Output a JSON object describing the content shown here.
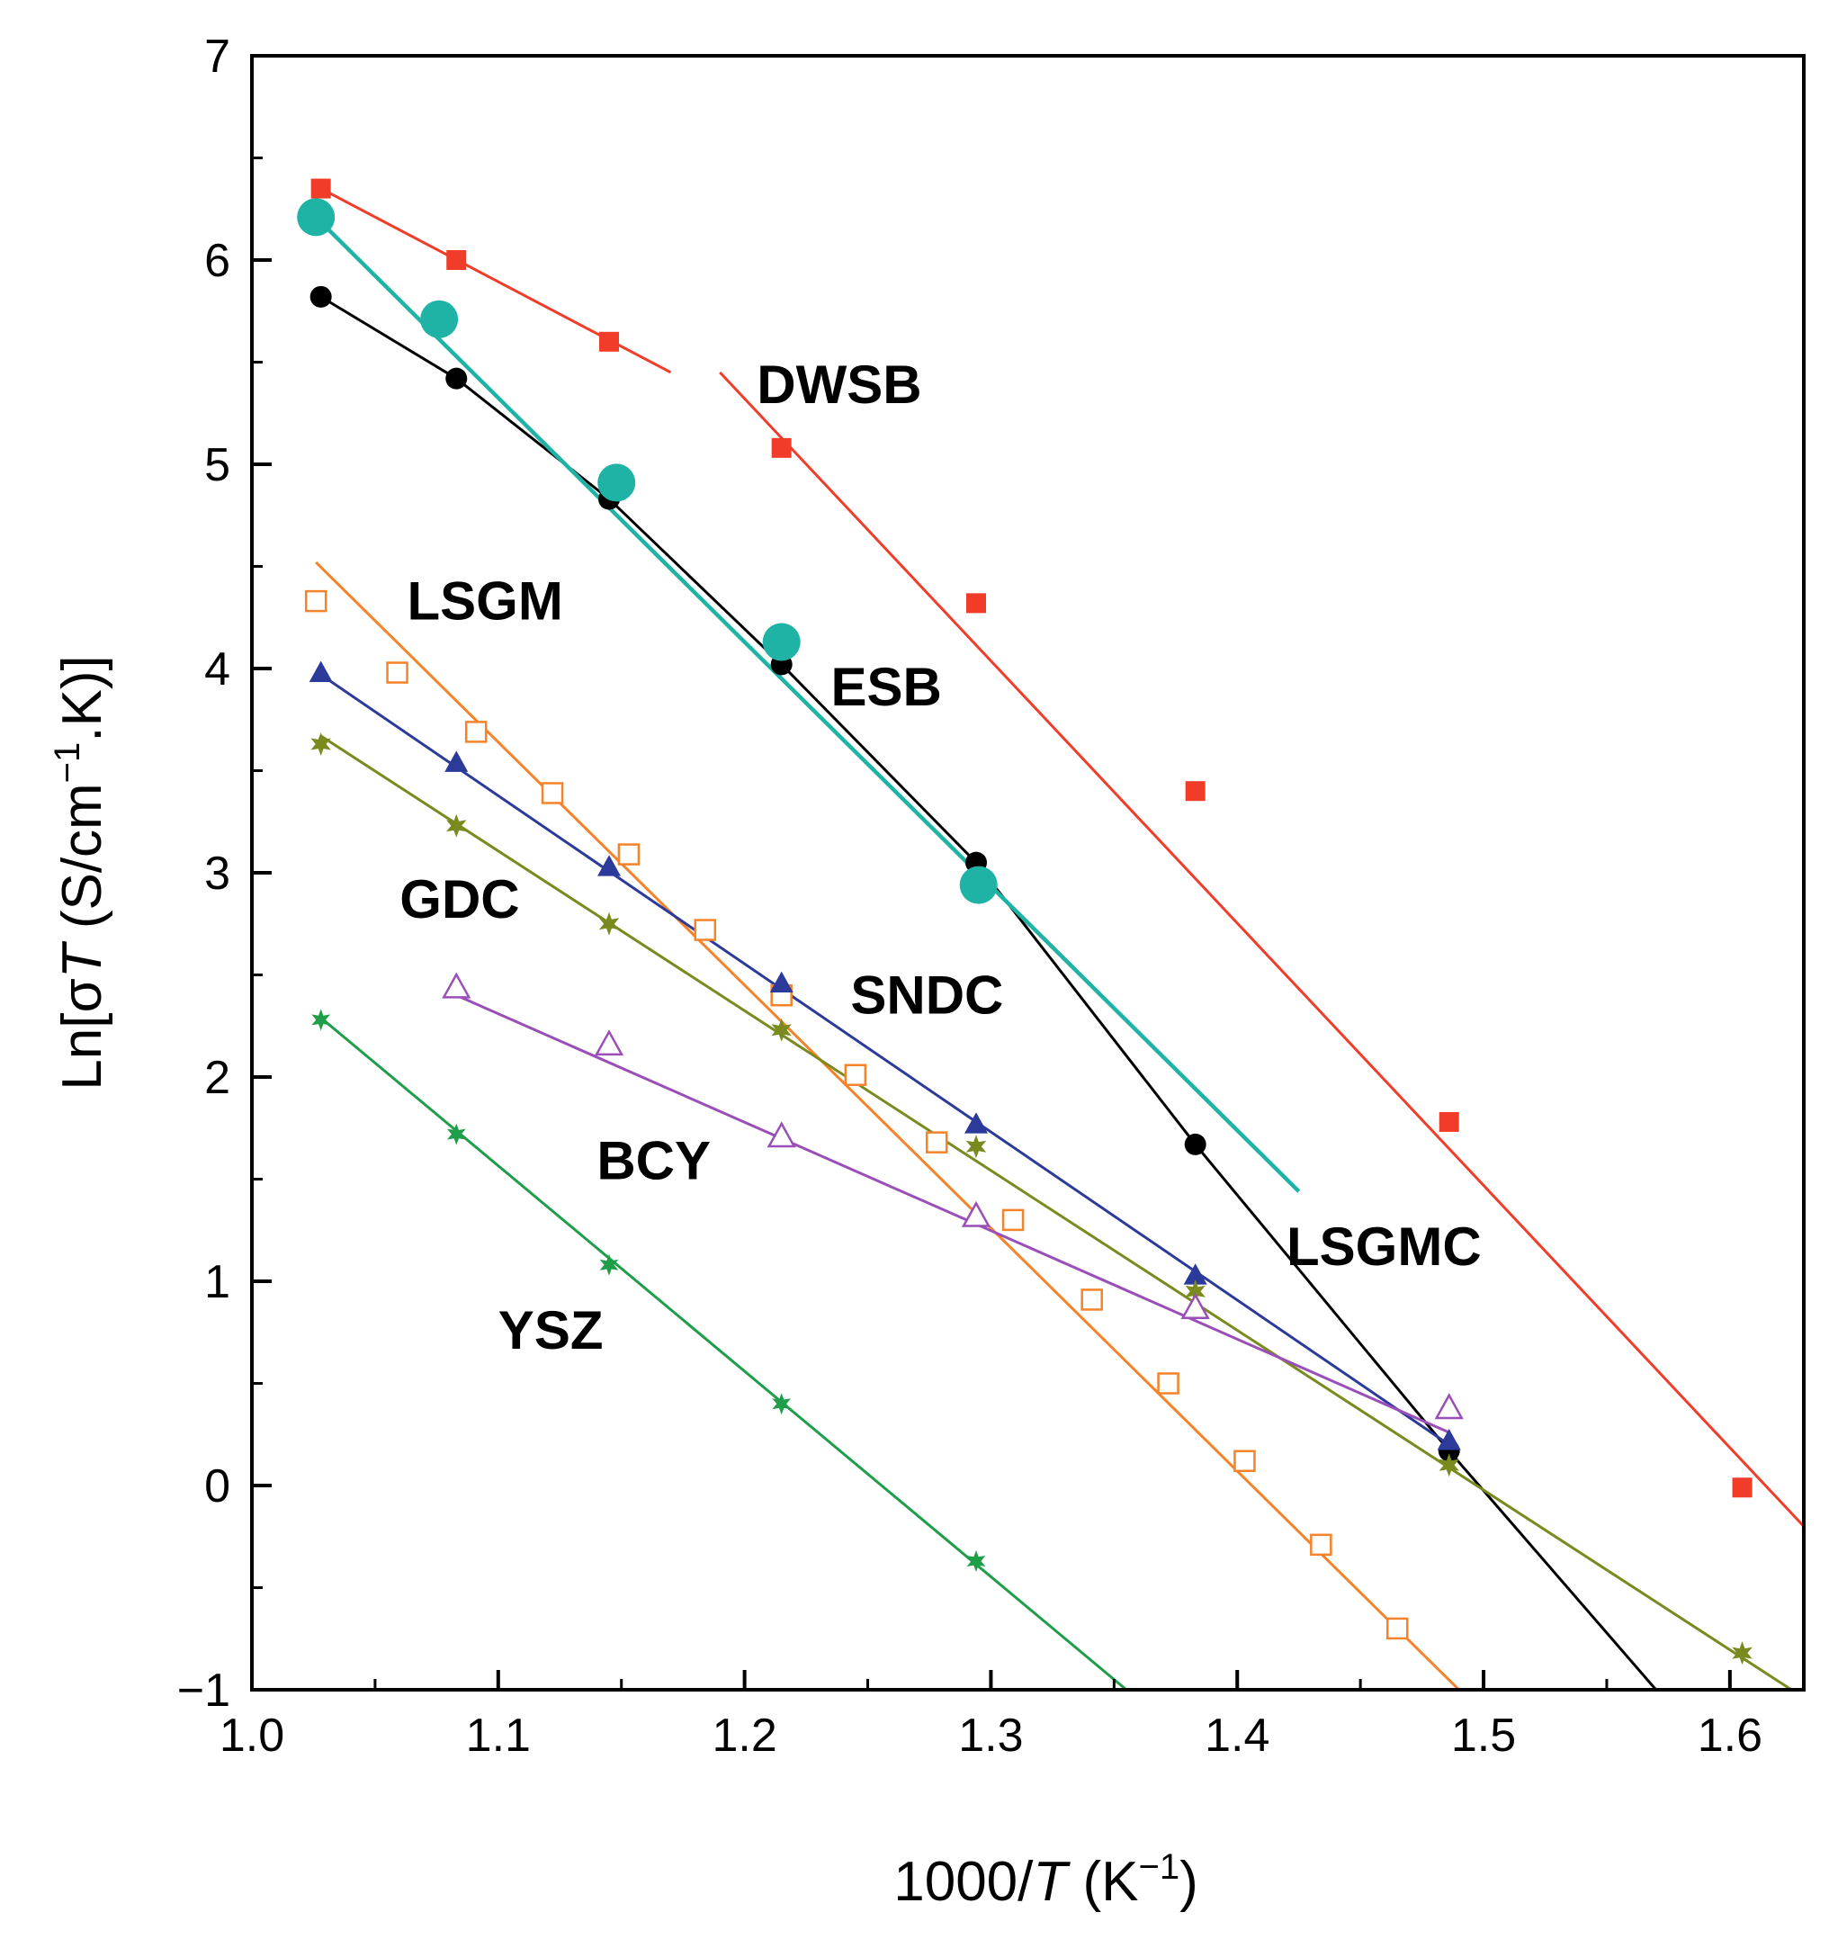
{
  "chart_data": {
    "type": "scatter",
    "title": "",
    "xlabel": "1000/T (K⁻¹)",
    "xlabel_parts": {
      "prefix": "1000/",
      "italic": "T",
      "unit_open": " (K",
      "unit_sup": "−1",
      "unit_close": ")"
    },
    "ylabel": "Ln[σT (S/cm⁻¹.K)]",
    "ylabel_parts": {
      "prefix": "Ln[σ",
      "italic": "T",
      "unit_open": " (S/cm",
      "unit_sup": "−1",
      "unit_close": ".K)]"
    },
    "xlim": [
      1.0,
      1.63
    ],
    "ylim": [
      -1,
      7
    ],
    "xticks": [
      1.0,
      1.1,
      1.2,
      1.3,
      1.4,
      1.5,
      1.6
    ],
    "xtick_labels": [
      "1.0",
      "1.1",
      "1.2",
      "1.3",
      "1.4",
      "1.5",
      "1.6"
    ],
    "yticks": [
      -1,
      0,
      1,
      2,
      3,
      4,
      5,
      6,
      7
    ],
    "ytick_labels": [
      "−1",
      "0",
      "1",
      "2",
      "3",
      "4",
      "5",
      "6",
      "7"
    ],
    "grid": false,
    "legend": "none",
    "series": [
      {
        "name": "DWSB",
        "color": "#f03c28",
        "marker": "square-filled",
        "marker_size": 11,
        "x": [
          1.028,
          1.083,
          1.145,
          1.215,
          1.294,
          1.383,
          1.486,
          1.605
        ],
        "y": [
          6.35,
          6.0,
          5.6,
          5.08,
          4.32,
          3.4,
          1.78,
          -0.01
        ],
        "fits": [
          {
            "x": [
              1.028,
              1.17
            ],
            "y": [
              6.35,
              5.45
            ]
          },
          {
            "x": [
              1.19,
              1.63
            ],
            "y": [
              5.45,
              -0.2
            ]
          }
        ]
      },
      {
        "name": "LSGMC",
        "color": "#000000",
        "marker": "circle-filled",
        "marker_size": 12,
        "x": [
          1.028,
          1.083,
          1.145,
          1.215,
          1.294,
          1.383,
          1.486
        ],
        "y": [
          5.82,
          5.42,
          4.83,
          4.02,
          3.05,
          1.67,
          0.17
        ],
        "fits": [
          {
            "x": [
              1.028,
              1.083,
              1.145,
              1.215,
              1.294,
              1.383,
              1.486,
              1.57
            ],
            "y": [
              5.82,
              5.42,
              4.83,
              4.02,
              3.05,
              1.67,
              0.17,
              -1.0
            ]
          }
        ]
      },
      {
        "name": "ESB",
        "color": "#1fb3a6",
        "marker": "circle-large",
        "marker_size": 21,
        "x": [
          1.026,
          1.076,
          1.148,
          1.215,
          1.295
        ],
        "y": [
          6.21,
          5.71,
          4.91,
          4.13,
          2.94
        ],
        "fits": [
          {
            "x": [
              1.026,
              1.425
            ],
            "y": [
              6.21,
              1.44
            ]
          }
        ]
      },
      {
        "name": "LSGM",
        "color": "#f5832a",
        "marker": "square-open",
        "marker_size": 11,
        "x": [
          1.026,
          1.059,
          1.091,
          1.122,
          1.153,
          1.184,
          1.215,
          1.245,
          1.278,
          1.309,
          1.341,
          1.372,
          1.403,
          1.434,
          1.465
        ],
        "y": [
          4.33,
          3.98,
          3.69,
          3.39,
          3.09,
          2.72,
          2.4,
          2.01,
          1.68,
          1.3,
          0.91,
          0.5,
          0.12,
          -0.29,
          -0.7
        ],
        "fits": [
          {
            "x": [
              1.026,
              1.49
            ],
            "y": [
              4.52,
              -1.0
            ]
          }
        ]
      },
      {
        "name": "SNDC",
        "color": "#2c3a9a",
        "marker": "triangle-filled",
        "marker_size": 13,
        "x": [
          1.028,
          1.083,
          1.145,
          1.215,
          1.294,
          1.383,
          1.486
        ],
        "y": [
          3.98,
          3.54,
          3.03,
          2.46,
          1.77,
          1.03,
          0.22
        ],
        "fits": [
          {
            "x": [
              1.028,
              1.486
            ],
            "y": [
              3.97,
              0.2
            ]
          }
        ]
      },
      {
        "name": "GDC",
        "color": "#7a8a1e",
        "marker": "star-filled",
        "marker_size": 13,
        "x": [
          1.028,
          1.083,
          1.145,
          1.215,
          1.294,
          1.383,
          1.486,
          1.605
        ],
        "y": [
          3.63,
          3.23,
          2.75,
          2.23,
          1.66,
          0.95,
          0.1,
          -0.82
        ],
        "fits": [
          {
            "x": [
              1.028,
              1.625
            ],
            "y": [
              3.67,
              -1.0
            ]
          }
        ]
      },
      {
        "name": "BCY",
        "color": "#9a4fb8",
        "marker": "triangle-open",
        "marker_size": 14,
        "x": [
          1.083,
          1.145,
          1.215,
          1.294,
          1.383,
          1.486
        ],
        "y": [
          2.44,
          2.16,
          1.71,
          1.32,
          0.87,
          0.38
        ],
        "fits": [
          {
            "x": [
              1.083,
              1.486
            ],
            "y": [
              2.4,
              0.26
            ]
          }
        ]
      },
      {
        "name": "YSZ",
        "color": "#1f9e4a",
        "marker": "star-filled",
        "marker_size": 12,
        "x": [
          1.028,
          1.083,
          1.145,
          1.215,
          1.294
        ],
        "y": [
          2.28,
          1.72,
          1.08,
          0.4,
          -0.37
        ],
        "fits": [
          {
            "x": [
              1.028,
              1.355
            ],
            "y": [
              2.29,
              -1.0
            ]
          }
        ]
      }
    ],
    "annotations": [
      {
        "text": "DWSB",
        "x": 1.205,
        "y": 5.3
      },
      {
        "text": "LSGM",
        "x": 1.063,
        "y": 4.24
      },
      {
        "text": "ESB",
        "x": 1.235,
        "y": 3.82
      },
      {
        "text": "GDC",
        "x": 1.06,
        "y": 2.78
      },
      {
        "text": "SNDC",
        "x": 1.243,
        "y": 2.31
      },
      {
        "text": "BCY",
        "x": 1.14,
        "y": 1.5
      },
      {
        "text": "LSGMC",
        "x": 1.42,
        "y": 1.08
      },
      {
        "text": "YSZ",
        "x": 1.1,
        "y": 0.67
      }
    ]
  }
}
